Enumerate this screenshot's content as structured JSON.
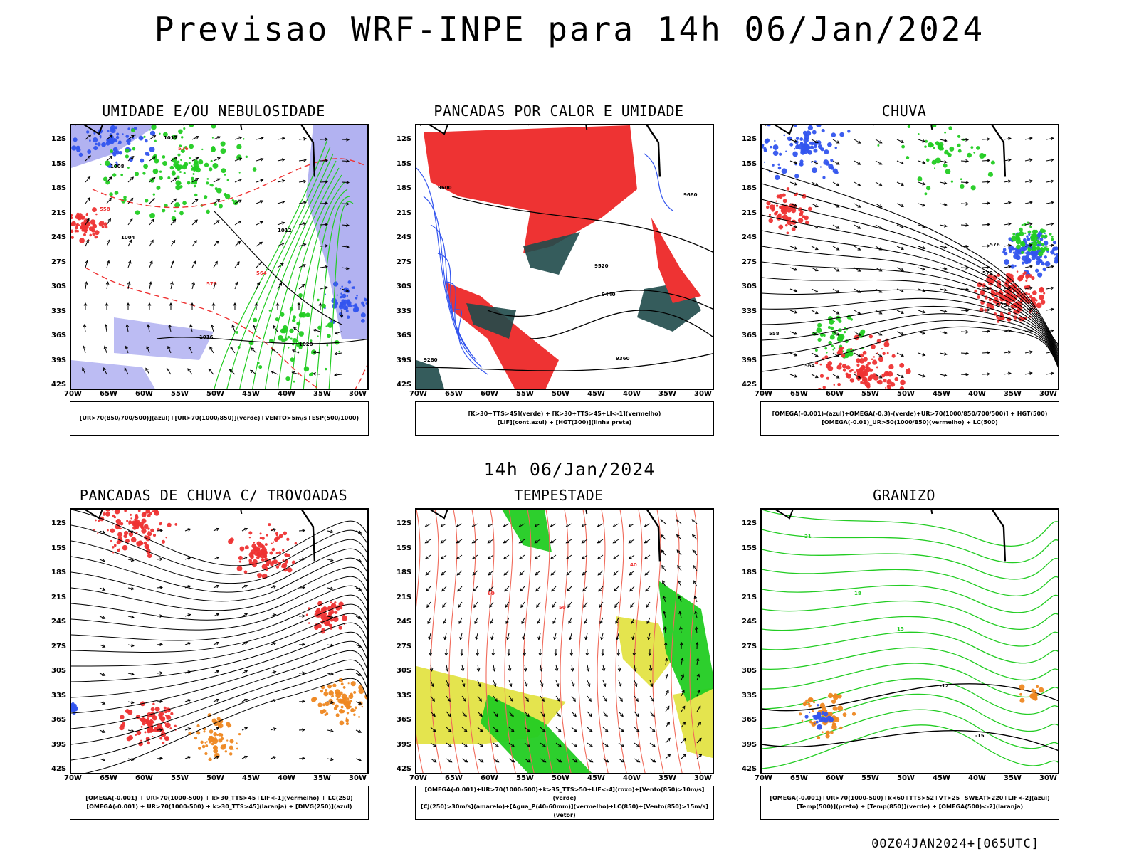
{
  "title": "Previsao WRF-INPE  para 14h 06/Jan/2024",
  "mid_label": "14h 06/Jan/2024",
  "footer": "00Z04JAN2024+[065UTC]",
  "lat_labels": [
    "12S",
    "15S",
    "18S",
    "21S",
    "24S",
    "27S",
    "30S",
    "33S",
    "36S",
    "39S",
    "42S"
  ],
  "lon_labels": [
    "70W",
    "65W",
    "60W",
    "55W",
    "50W",
    "45W",
    "40W",
    "35W",
    "30W"
  ],
  "colors": {
    "blue": "#3355ee",
    "lightblue": "#9f9fee",
    "green": "#22cc22",
    "red": "#ee3333",
    "orange": "#ee8822",
    "yellow": "#dddd22",
    "darkteal": "#1f4a4a",
    "salmon": "#f06a5a"
  },
  "panels": [
    {
      "title": "UMIDADE E/OU NEBULOSIDADE",
      "legend": [
        "[UR>70(850/700/500)](azul)+[UR>70(1000/850)](verde)+VENTO>5m/s+ESP(500/1000)"
      ],
      "contour_labels": [
        "1012",
        "1008",
        "1004",
        "1012",
        "1016",
        "1020",
        "576",
        "570",
        "564",
        "558"
      ]
    },
    {
      "title": "PANCADAS POR CALOR E UMIDADE",
      "legend": [
        "[K>30+TTS>45](verde) + [K>30+TTS>45+LI<-1](vermelho)",
        "[LIF](cont.azul) + [HGT(300)](linha preta)"
      ],
      "contour_labels": [
        "9600",
        "9520",
        "9440",
        "9360",
        "9280",
        "9680"
      ]
    },
    {
      "title": "CHUVA",
      "legend": [
        "[OMEGA(-0.001)-(azul)+OMEGA(-0.3)-(verde)+UR>70(1000/850/700/500)] + HGT(500)",
        "[OMEGA(-0.01)_UR>50(1000/850)(vermelho) + LC(500)"
      ],
      "contour_labels": [
        "576",
        "573",
        "570",
        "564",
        "558"
      ]
    },
    {
      "title": "PANCADAS DE CHUVA C/ TROVOADAS",
      "legend": [
        "[OMEGA(-0.001) + UR>70(1000-500) + k>30_TTS>45+LIF<-1](vermelho) + LC(250)",
        "[OMEGA(-0.001) + UR>70(1000-500) + k>30_TTS>45](laranja) + [DIVG(250)](azul)"
      ],
      "contour_labels": []
    },
    {
      "title": "TEMPESTADE",
      "legend": [
        "[OMEGA(-0.001)+UR>70(1000-500)+k>35_TTS>50+LIF<-4](roxo)+[Vento(850)>10m/s](verde)",
        "[CJ(250)>30m/s](amarelo)+[Agua_P(40-60mm)](vermelho)+LC(850)+[Vento(850)>15m/s](vetor)"
      ],
      "contour_labels": [
        "40",
        "50",
        "60"
      ]
    },
    {
      "title": "GRANIZO",
      "legend": [
        "[OMEGA(-0.001)+UR>70(1000-500)+k<60+TTS>52+VT>25+SWEAT>220+LIF<-2](azul)",
        "[Temp(500)](preto) + [Temp(850)](verde) + [OMEGA(500)<-2](laranja)"
      ],
      "contour_labels": [
        "-12",
        "-15",
        "15",
        "18",
        "21"
      ]
    }
  ]
}
